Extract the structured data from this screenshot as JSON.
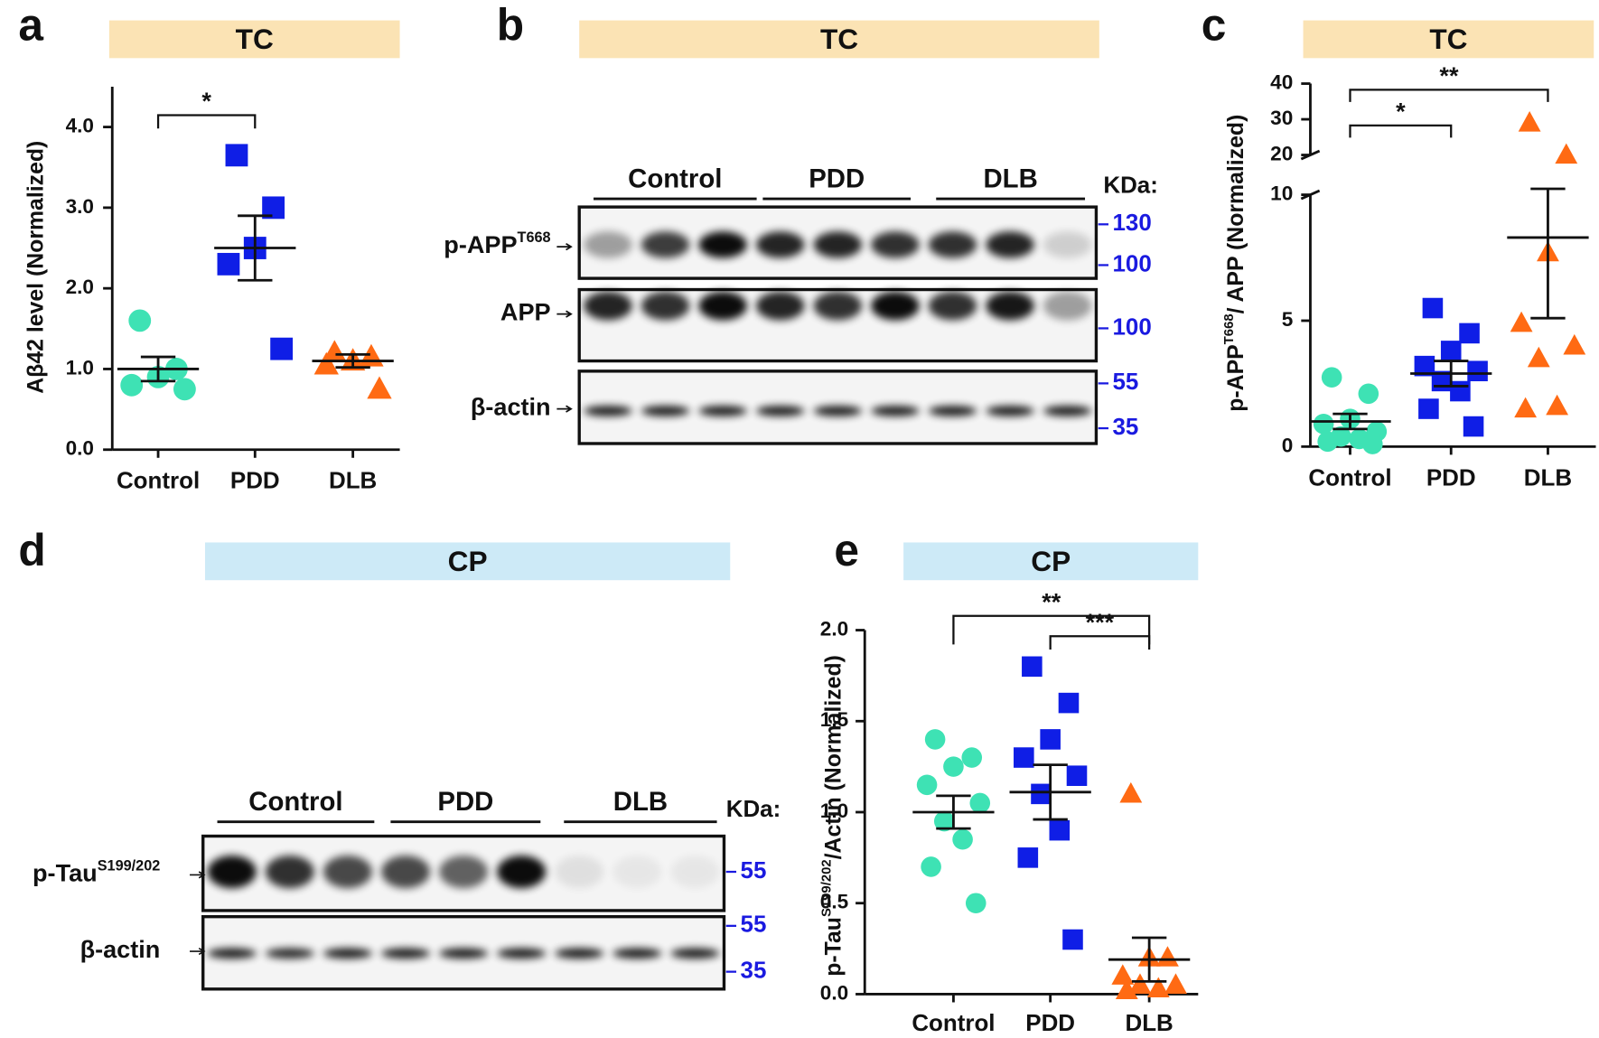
{
  "chart_data": [
    {
      "type": "strip",
      "panel": "a",
      "header": "TC",
      "ylabel": [
        {
          "text": "Aβ42 level (Normalized)"
        }
      ],
      "categories": [
        "Control",
        "PDD",
        "DLB"
      ],
      "colors": [
        "#3ee2b4",
        "#0f1ee6",
        "#ff6a13"
      ],
      "markers": [
        "circle",
        "square",
        "triangle"
      ],
      "points": [
        [
          1.6,
          1.0,
          0.9,
          0.8,
          0.75
        ],
        [
          3.65,
          3.0,
          2.5,
          2.3,
          1.25
        ],
        [
          1.2,
          1.15,
          1.1,
          1.05,
          0.75
        ]
      ],
      "means": [
        1.0,
        2.5,
        1.1
      ],
      "sems": [
        0.15,
        0.4,
        0.08
      ],
      "ylim": [
        0,
        4.5
      ],
      "yticks": [
        {
          "value": 0,
          "label": "0.0"
        },
        {
          "value": 1,
          "label": "1.0"
        },
        {
          "value": 2,
          "label": "2.0"
        },
        {
          "value": 3,
          "label": "3.0"
        },
        {
          "value": 4,
          "label": "4.0"
        }
      ],
      "comparisons": [
        {
          "pair": [
            "Control",
            "PDD"
          ],
          "label": "*"
        }
      ]
    },
    {
      "type": "strip",
      "panel": "c",
      "header": "TC",
      "ylabel": [
        {
          "text": "p-APP"
        },
        {
          "text": "T668",
          "sup": true
        },
        {
          "text": "/ APP (Normalized)"
        }
      ],
      "categories": [
        "Control",
        "PDD",
        "DLB"
      ],
      "colors": [
        "#3ee2b4",
        "#0f1ee6",
        "#ff6a13"
      ],
      "markers": [
        "circle",
        "square",
        "triangle"
      ],
      "points": [
        [
          2.75,
          2.1,
          1.1,
          0.9,
          0.6,
          0.4,
          0.3,
          0.2,
          0.1
        ],
        [
          5.5,
          4.5,
          3.8,
          3.2,
          3.0,
          2.6,
          2.2,
          1.5,
          0.8
        ],
        [
          29,
          20,
          7.7,
          4.9,
          4.0,
          3.5,
          1.6,
          1.5
        ]
      ],
      "means": [
        1.0,
        2.9,
        8.3
      ],
      "sems": [
        0.3,
        0.5,
        3.2
      ],
      "ylim": [
        0,
        40
      ],
      "axis_break": [
        10,
        20
      ],
      "yticks": [
        0,
        5,
        10,
        20,
        30,
        40
      ],
      "comparisons": [
        {
          "pair": [
            "Control",
            "PDD"
          ],
          "label": "*"
        },
        {
          "pair": [
            "Control",
            "DLB"
          ],
          "label": "**"
        }
      ]
    },
    {
      "type": "strip",
      "panel": "e",
      "header": "CP",
      "ylabel": [
        {
          "text": "p-Tau"
        },
        {
          "text": "S199/202",
          "sup": true
        },
        {
          "text": "/Actin (Normalized)"
        }
      ],
      "categories": [
        "Control",
        "PDD",
        "DLB"
      ],
      "colors": [
        "#3ee2b4",
        "#0f1ee6",
        "#ff6a13"
      ],
      "markers": [
        "circle",
        "square",
        "triangle"
      ],
      "points": [
        [
          1.4,
          1.3,
          1.25,
          1.15,
          1.05,
          0.95,
          0.85,
          0.7,
          0.5
        ],
        [
          1.8,
          1.6,
          1.4,
          1.3,
          1.2,
          1.1,
          0.9,
          0.75,
          0.3
        ],
        [
          1.1,
          0.2,
          0.2,
          0.1,
          0.05,
          0.05,
          0.03,
          0.02
        ]
      ],
      "means": [
        1.0,
        1.11,
        0.19
      ],
      "sems": [
        0.09,
        0.15,
        0.12
      ],
      "ylim": [
        0,
        2.0
      ],
      "yticks": [
        {
          "value": 0,
          "label": "0.0"
        },
        {
          "value": 0.5,
          "label": "0.5"
        },
        {
          "value": 1,
          "label": "1.0"
        },
        {
          "value": 1.5,
          "label": "1.5"
        },
        {
          "value": 2,
          "label": "2.0"
        }
      ],
      "comparisons": [
        {
          "pair": [
            "Control",
            "DLB"
          ],
          "label": "**"
        },
        {
          "pair": [
            "PDD",
            "DLB"
          ],
          "label": "***"
        }
      ]
    }
  ],
  "blots": [
    {
      "panel": "b",
      "header": "TC",
      "groups": [
        "Control",
        "PDD",
        "DLB"
      ],
      "unit": "KDa:",
      "rows": [
        {
          "label": [
            {
              "text": "p-APP"
            },
            {
              "text": "T668",
              "sup": true
            }
          ],
          "markers": [
            130,
            100
          ]
        },
        {
          "label": [
            {
              "text": "APP"
            }
          ],
          "markers": [
            100
          ]
        },
        {
          "label": [
            {
              "text": "β-actin"
            }
          ],
          "markers": [
            55,
            35
          ]
        }
      ]
    },
    {
      "panel": "d",
      "header": "CP",
      "groups": [
        "Control",
        "PDD",
        "DLB"
      ],
      "unit": "KDa:",
      "rows": [
        {
          "label": [
            {
              "text": "p-Tau"
            },
            {
              "text": "S199/202",
              "sup": true
            }
          ],
          "markers": [
            55
          ]
        },
        {
          "label": [
            {
              "text": "β-actin"
            }
          ],
          "markers": [
            55,
            35
          ]
        }
      ]
    }
  ]
}
